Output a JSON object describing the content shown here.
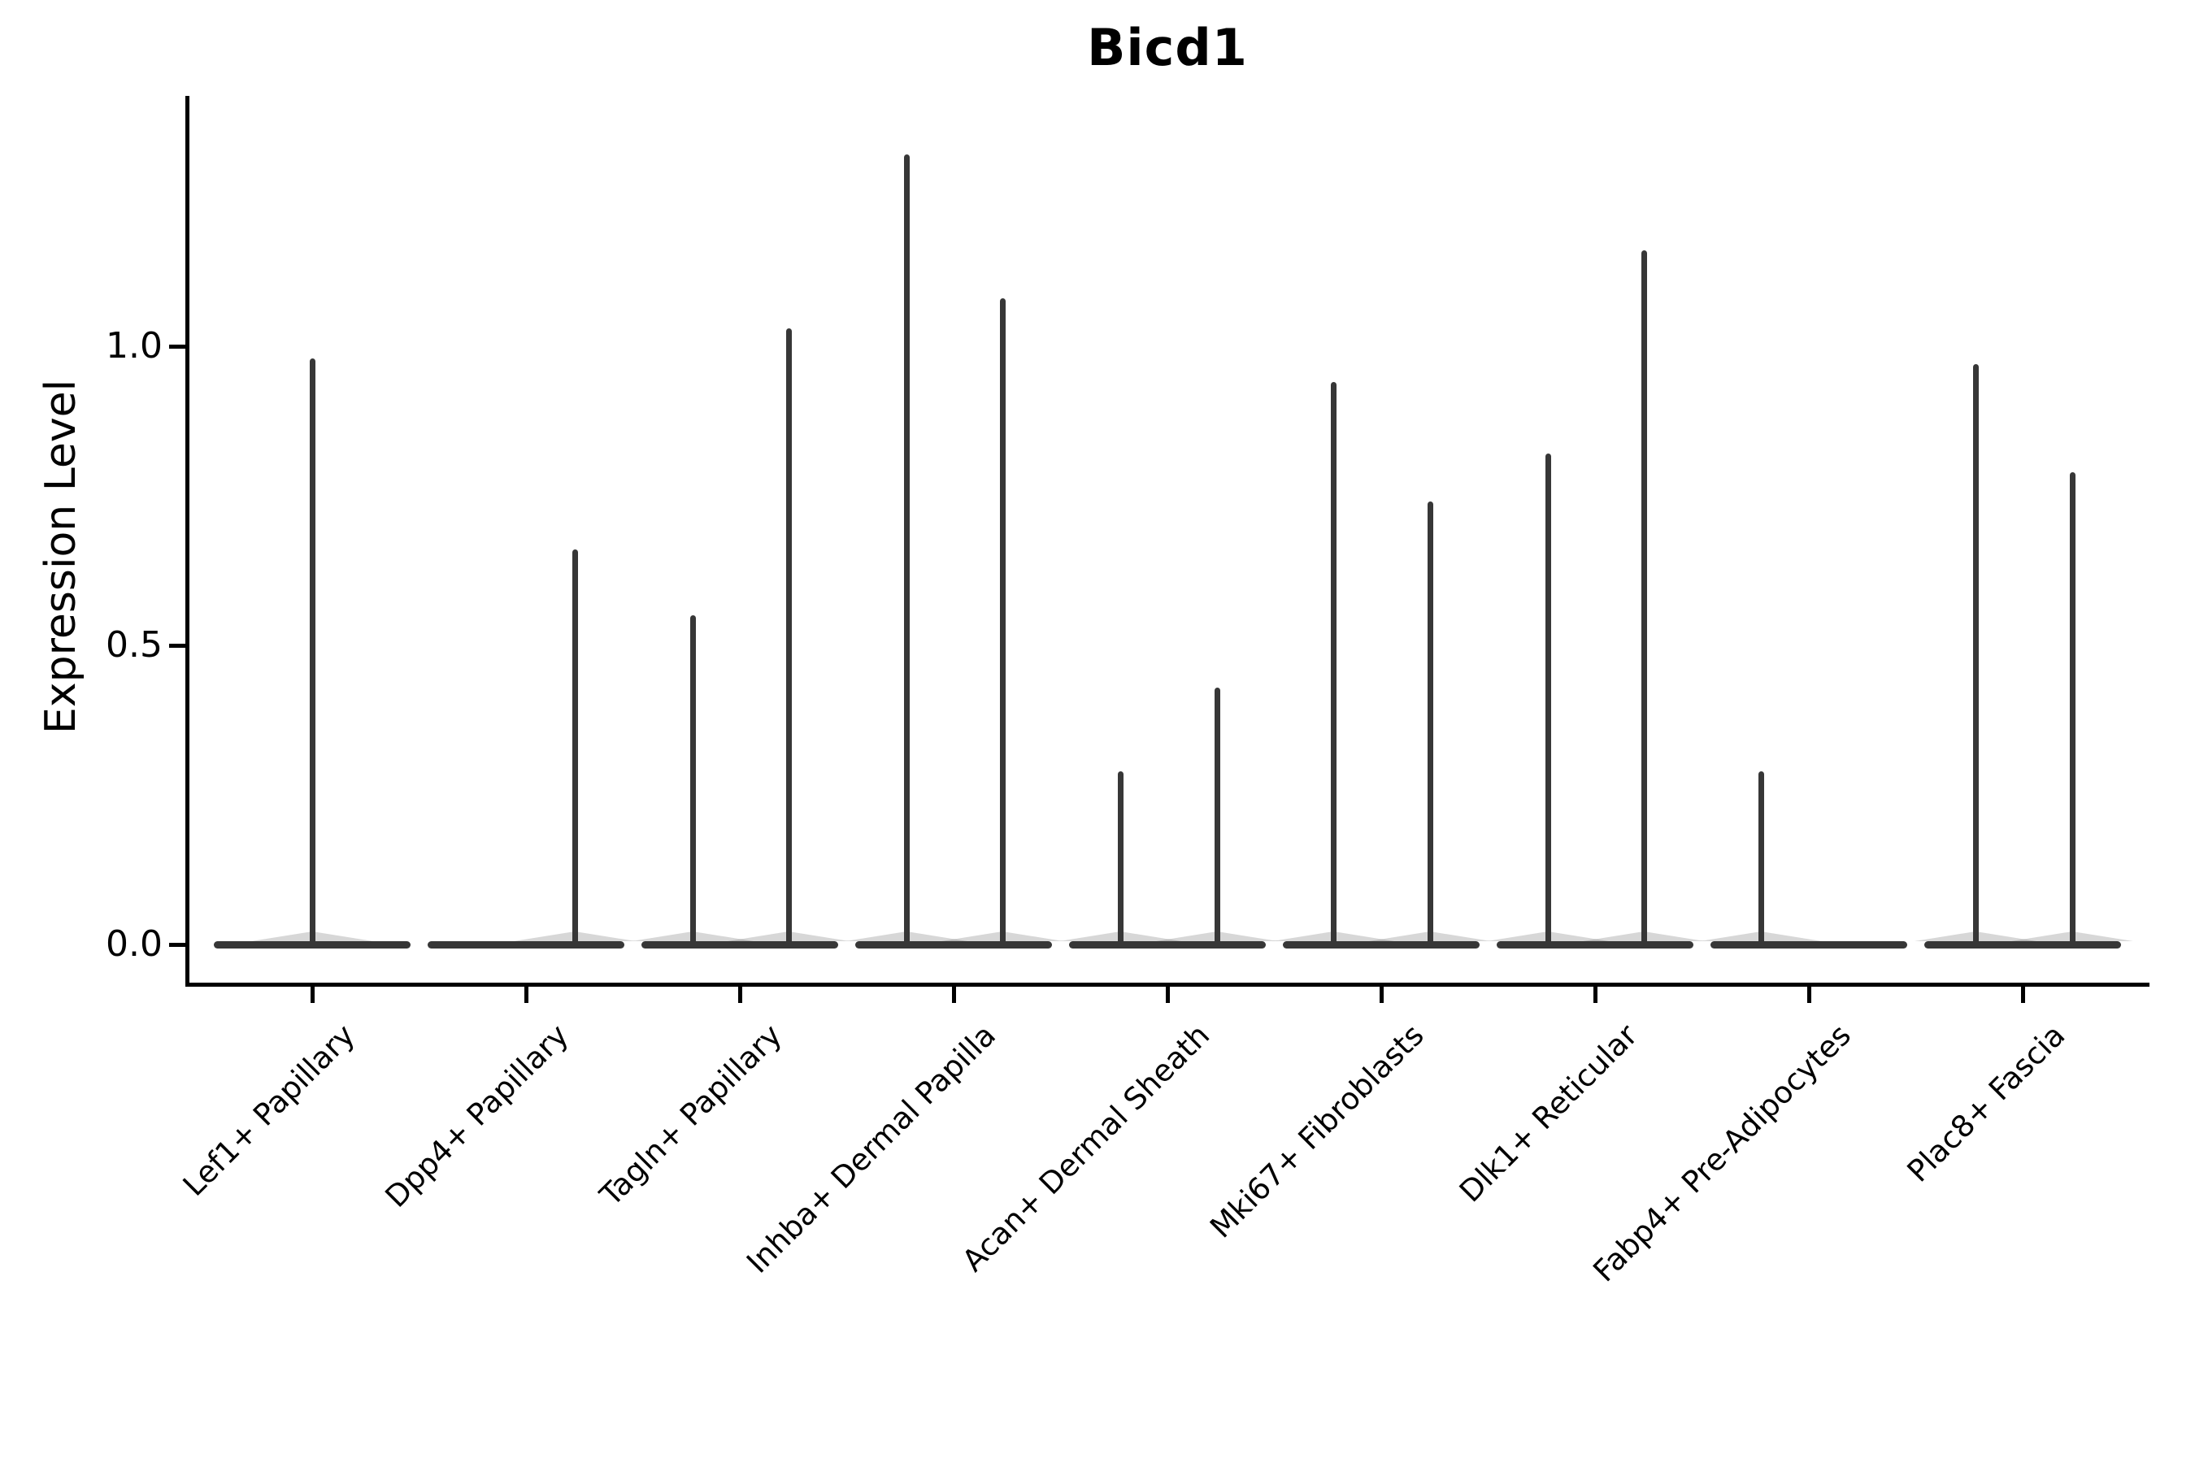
{
  "title": "Bicd1",
  "chart_data": {
    "type": "violin",
    "title": "Bicd1",
    "xlabel": "",
    "ylabel": "Expression Level",
    "ylim": [
      0,
      1.42
    ],
    "grid": false,
    "legend": "none",
    "yticks": [
      {
        "label": "0.0",
        "value": 0.0
      },
      {
        "label": "0.5",
        "value": 0.5
      },
      {
        "label": "1.0",
        "value": 1.0
      }
    ],
    "categories": [
      "Lef1+ Papillary",
      "Dpp4+ Papillary",
      "Tagln+ Papillary",
      "Inhba+ Dermal Papilla",
      "Acan+ Dermal Sheath",
      "Mki67+ Fibroblasts",
      "Dlk1+ Reticular",
      "Fabp4+ Pre-Adipocytes",
      "Plac8+ Fascia"
    ],
    "violins": [
      {
        "category": "Lef1+ Papillary",
        "spikes": [
          {
            "dx": 0,
            "max": 0.98
          }
        ]
      },
      {
        "category": "Dpp4+ Papillary",
        "spikes": [
          {
            "dx": 60,
            "max": 0.66
          }
        ]
      },
      {
        "category": "Tagln+ Papillary",
        "spikes": [
          {
            "dx": -58,
            "max": 0.55
          },
          {
            "dx": 60,
            "max": 1.03
          }
        ]
      },
      {
        "category": "Inhba+ Dermal Papilla",
        "spikes": [
          {
            "dx": -58,
            "max": 1.32
          },
          {
            "dx": 60,
            "max": 1.08
          }
        ]
      },
      {
        "category": "Acan+ Dermal Sheath",
        "spikes": [
          {
            "dx": -58,
            "max": 0.29
          },
          {
            "dx": 61,
            "max": 0.43
          }
        ]
      },
      {
        "category": "Mki67+ Fibroblasts",
        "spikes": [
          {
            "dx": -59,
            "max": 0.94
          },
          {
            "dx": 60,
            "max": 0.74
          }
        ]
      },
      {
        "category": "Dlk1+ Reticular",
        "spikes": [
          {
            "dx": -58,
            "max": 0.82
          },
          {
            "dx": 60,
            "max": 1.16
          }
        ]
      },
      {
        "category": "Fabp4+ Pre-Adipocytes",
        "spikes": [
          {
            "dx": -59,
            "max": 0.29
          }
        ]
      },
      {
        "category": "Plac8+ Fascia",
        "spikes": [
          {
            "dx": -58,
            "max": 0.97
          },
          {
            "dx": 61,
            "max": 0.79
          }
        ]
      }
    ],
    "baseline_value": 0.0
  },
  "colors": {
    "ink": "#000000",
    "violin": "#373737",
    "background": "#ffffff"
  }
}
